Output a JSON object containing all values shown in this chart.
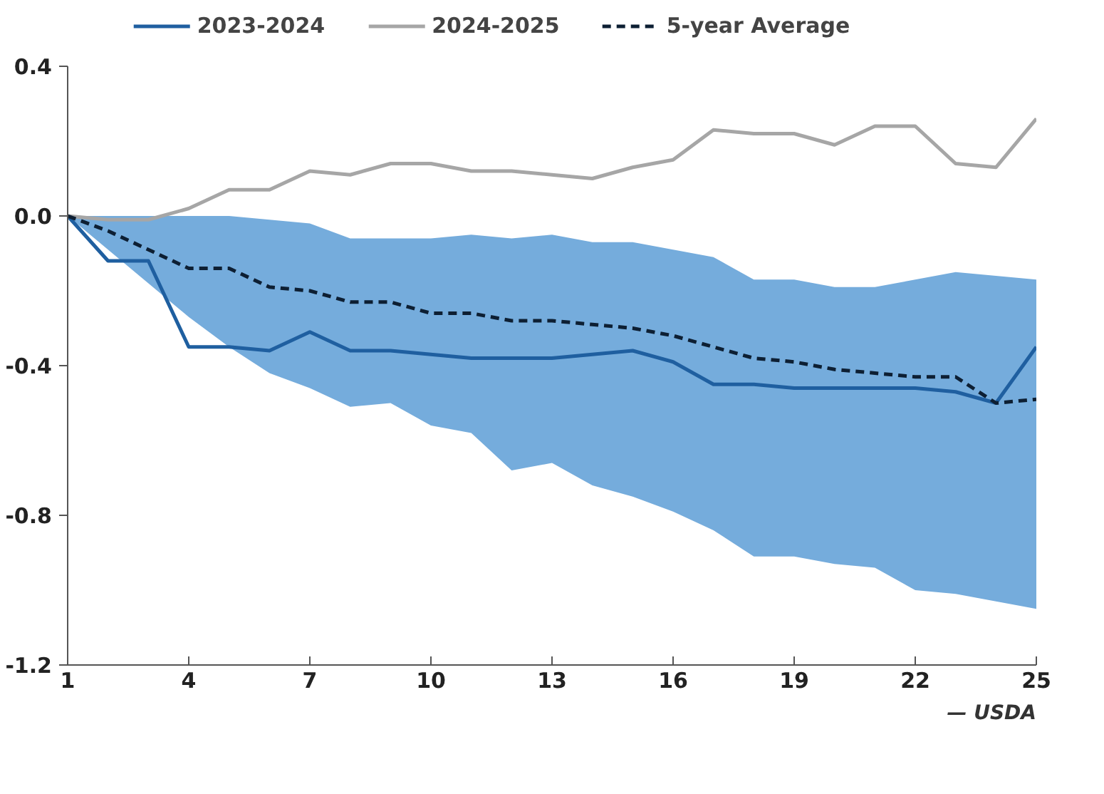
{
  "chart_data": {
    "type": "line",
    "x": [
      1,
      2,
      3,
      4,
      5,
      6,
      7,
      8,
      9,
      10,
      11,
      12,
      13,
      14,
      15,
      16,
      17,
      18,
      19,
      20,
      21,
      22,
      23,
      24,
      25
    ],
    "series": [
      {
        "name": "2023-2024",
        "color": "#1f5fa0",
        "line_style": "solid",
        "values": [
          0,
          -0.12,
          -0.12,
          -0.35,
          -0.35,
          -0.36,
          -0.31,
          -0.36,
          -0.36,
          -0.37,
          -0.38,
          -0.38,
          -0.38,
          -0.37,
          -0.36,
          -0.39,
          -0.45,
          -0.45,
          -0.46,
          -0.46,
          -0.46,
          -0.46,
          -0.47,
          -0.5,
          -0.35
        ]
      },
      {
        "name": "2024-2025",
        "color": "#a6a6a6",
        "line_style": "solid",
        "values": [
          0,
          -0.01,
          -0.01,
          0.02,
          0.07,
          0.07,
          0.12,
          0.11,
          0.14,
          0.14,
          0.12,
          0.12,
          0.11,
          0.1,
          0.13,
          0.15,
          0.23,
          0.22,
          0.22,
          0.19,
          0.24,
          0.24,
          0.14,
          0.13,
          0.26
        ]
      },
      {
        "name": "5-year Average",
        "color": "#0d1f33",
        "line_style": "dashed",
        "values": [
          0,
          -0.04,
          -0.09,
          -0.14,
          -0.14,
          -0.19,
          -0.2,
          -0.23,
          -0.23,
          -0.26,
          -0.26,
          -0.28,
          -0.28,
          -0.29,
          -0.3,
          -0.32,
          -0.35,
          -0.38,
          -0.39,
          -0.41,
          -0.42,
          -0.43,
          -0.43,
          -0.5,
          -0.49
        ],
        "upper": [
          0,
          0,
          0,
          0,
          0,
          -0.01,
          -0.02,
          -0.06,
          -0.06,
          -0.06,
          -0.05,
          -0.06,
          -0.05,
          -0.07,
          -0.07,
          -0.09,
          -0.11,
          -0.17,
          -0.17,
          -0.19,
          -0.19,
          -0.17,
          -0.15,
          -0.16,
          -0.17
        ],
        "lower": [
          0,
          -0.09,
          -0.18,
          -0.27,
          -0.35,
          -0.42,
          -0.46,
          -0.51,
          -0.5,
          -0.56,
          -0.58,
          -0.68,
          -0.66,
          -0.72,
          -0.75,
          -0.79,
          -0.84,
          -0.91,
          -0.91,
          -0.93,
          -0.94,
          -1.0,
          -1.01,
          -1.03,
          -1.05
        ]
      }
    ],
    "xlim": [
      1,
      25
    ],
    "xticks": [
      1,
      4,
      7,
      10,
      13,
      16,
      19,
      22,
      25
    ],
    "ylim": [
      -1.2,
      0.4
    ],
    "yticks": [
      {
        "value": 0.4,
        "label": "0.4"
      },
      {
        "value": 0,
        "label": "0.0"
      },
      {
        "value": -0.4,
        "label": "-0.4"
      },
      {
        "value": -0.8,
        "label": "-0.8"
      },
      {
        "value": -1.2,
        "label": "-1.2"
      }
    ],
    "grid": false,
    "legend": "top",
    "marker": "none",
    "annotations": [
      "— USDA"
    ]
  }
}
